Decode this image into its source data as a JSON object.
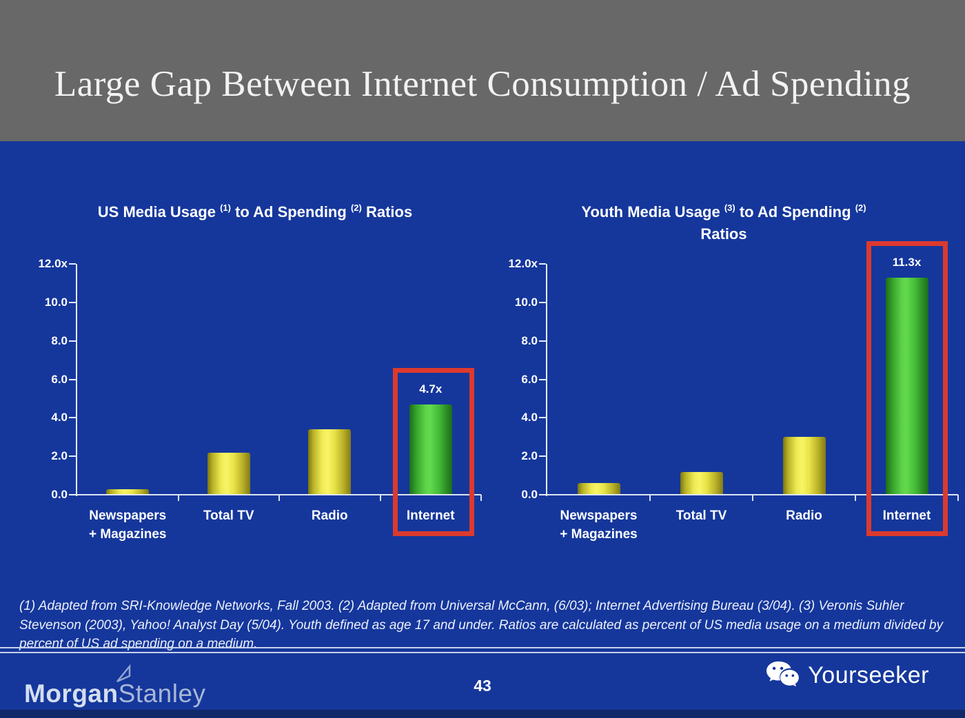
{
  "header": {
    "title": "Large Gap Between Internet Consumption / Ad Spending"
  },
  "chart_data": [
    {
      "type": "bar",
      "title": "US Media Usage (1) to Ad Spending (2) Ratios",
      "title_parts": {
        "pre": "US Media Usage",
        "sup1": "(1)",
        "mid": "to Ad Spending",
        "sup2": "(2)",
        "post": "Ratios"
      },
      "categories": [
        "Newspapers\n+ Magazines",
        "Total TV",
        "Radio",
        "Internet"
      ],
      "values": [
        0.3,
        2.2,
        3.4,
        4.7
      ],
      "bar_colors": [
        "yellow",
        "yellow",
        "yellow",
        "green"
      ],
      "bar_labels": [
        "",
        "",
        "",
        "4.7x"
      ],
      "yticks": [
        "12.0x",
        "10.0",
        "8.0",
        "6.0",
        "4.0",
        "2.0",
        "0.0"
      ],
      "ylim": [
        0,
        12
      ],
      "grid": false,
      "legend": "none",
      "highlighted_category": "Internet"
    },
    {
      "type": "bar",
      "title": "Youth Media Usage (3) to Ad Spending (2) Ratios",
      "title_parts": {
        "pre": "Youth Media Usage",
        "sup1": "(3)",
        "mid": "to Ad Spending",
        "sup2": "(2)",
        "post": "Ratios"
      },
      "categories": [
        "Newspapers\n+ Magazines",
        "Total TV",
        "Radio",
        "Internet"
      ],
      "values": [
        0.6,
        1.2,
        3.0,
        11.3
      ],
      "bar_colors": [
        "yellow",
        "yellow",
        "yellow",
        "green"
      ],
      "bar_labels": [
        "",
        "",
        "",
        "11.3x"
      ],
      "yticks": [
        "12.0x",
        "10.0",
        "8.0",
        "6.0",
        "4.0",
        "2.0",
        "0.0"
      ],
      "ylim": [
        0,
        12
      ],
      "grid": false,
      "legend": "none",
      "highlighted_category": "Internet"
    }
  ],
  "footnote": "(1) Adapted from SRI-Knowledge Networks, Fall 2003.  (2) Adapted from Universal McCann, (6/03); Internet Advertising Bureau (3/04). (3) Veronis Suhler Stevenson (2003), Yahoo! Analyst Day (5/04).  Youth defined as age 17 and under.  Ratios are calculated as percent of US media usage on a medium divided by percent of US ad spending on a medium.",
  "footer": {
    "page_number": "43",
    "logo": {
      "part1": "Morgan",
      "part2": "Stanley"
    },
    "watermark": {
      "label": "Yourseeker",
      "icon": "wechat-icon"
    }
  },
  "colors": {
    "header_gray": "#686868",
    "background_blue": "#15379c",
    "bottom_strip_blue": "#112968",
    "highlight_red": "#dc3a2e",
    "bar_yellow": "#f5f150",
    "bar_green": "#55cc44",
    "axis_white": "#e8edf8"
  }
}
